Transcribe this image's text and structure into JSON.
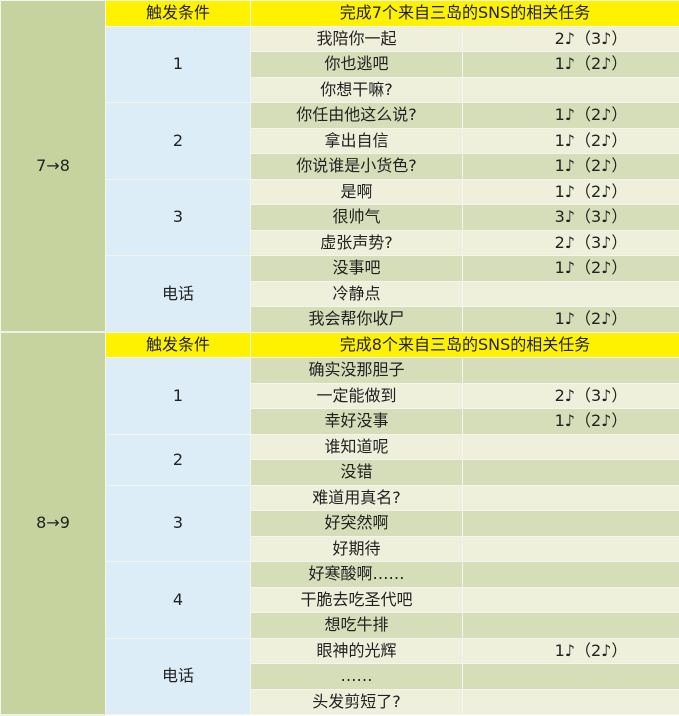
{
  "sections": [
    {
      "stage": "7→8",
      "header": {
        "label": "触发条件",
        "condition": "完成7个来自三岛的SNS的相关任务"
      },
      "groups": [
        {
          "name": "1",
          "rows": [
            {
              "option": "我陪你一起",
              "value": "2♪（3♪）"
            },
            {
              "option": "你也逃吧",
              "value": "1♪（2♪）"
            },
            {
              "option": "你想干嘛?",
              "value": ""
            }
          ]
        },
        {
          "name": "2",
          "rows": [
            {
              "option": "你任由他这么说?",
              "value": "1♪（2♪）"
            },
            {
              "option": "拿出自信",
              "value": "1♪（2♪）"
            },
            {
              "option": "你说谁是小货色?",
              "value": "1♪（2♪）"
            }
          ]
        },
        {
          "name": "3",
          "rows": [
            {
              "option": "是啊",
              "value": "1♪（2♪）"
            },
            {
              "option": "很帅气",
              "value": "3♪（3♪）"
            },
            {
              "option": "虚张声势?",
              "value": "2♪（3♪）"
            }
          ]
        },
        {
          "name": "电话",
          "rows": [
            {
              "option": "没事吧",
              "value": "1♪（2♪）"
            },
            {
              "option": "冷静点",
              "value": ""
            },
            {
              "option": "我会帮你收尸",
              "value": "1♪（2♪）"
            }
          ]
        }
      ]
    },
    {
      "stage": "8→9",
      "header": {
        "label": "触发条件",
        "condition": "完成8个来自三岛的SNS的相关任务"
      },
      "groups": [
        {
          "name": "1",
          "rows": [
            {
              "option": "确实没那胆子",
              "value": ""
            },
            {
              "option": "一定能做到",
              "value": "2♪（3♪）"
            },
            {
              "option": "幸好没事",
              "value": "1♪（2♪）"
            }
          ]
        },
        {
          "name": "2",
          "rows": [
            {
              "option": "谁知道呢",
              "value": ""
            },
            {
              "option": "没错",
              "value": ""
            }
          ]
        },
        {
          "name": "3",
          "rows": [
            {
              "option": "难道用真名?",
              "value": ""
            },
            {
              "option": "好突然啊",
              "value": ""
            },
            {
              "option": "好期待",
              "value": ""
            }
          ]
        },
        {
          "name": "4",
          "rows": [
            {
              "option": "好寒酸啊……",
              "value": ""
            },
            {
              "option": "干脆去吃圣代吧",
              "value": ""
            },
            {
              "option": "想吃牛排",
              "value": ""
            }
          ]
        },
        {
          "name": "电话",
          "rows": [
            {
              "option": "眼神的光辉",
              "value": "1♪（2♪）"
            },
            {
              "option": "……",
              "value": ""
            },
            {
              "option": "头发剪短了?",
              "value": ""
            }
          ]
        }
      ]
    }
  ]
}
